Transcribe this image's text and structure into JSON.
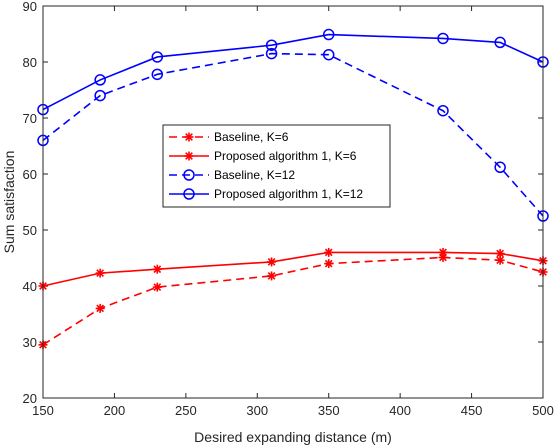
{
  "chart_data": {
    "type": "line",
    "title": "",
    "xlabel": "Desired expanding distance (m)",
    "ylabel": "Sum satisfaction",
    "xlim": [
      150,
      500
    ],
    "ylim": [
      20,
      90
    ],
    "xticks": [
      150,
      200,
      250,
      300,
      350,
      400,
      450,
      500
    ],
    "yticks": [
      20,
      30,
      40,
      50,
      60,
      70,
      80,
      90
    ],
    "x": [
      150,
      190,
      230,
      310,
      350,
      430,
      470,
      500
    ],
    "grid": false,
    "legend_position": "center-left",
    "series": [
      {
        "name": "Baseline, K=6",
        "values": [
          29.5,
          36.0,
          39.8,
          41.8,
          44.0,
          45.1,
          44.6,
          42.5
        ],
        "color": "#ff0000",
        "dash": "dashed",
        "marker": "asterisk"
      },
      {
        "name": "Proposed algorithm 1, K=6",
        "values": [
          40.0,
          42.3,
          43.0,
          44.3,
          46.0,
          46.0,
          45.8,
          44.5
        ],
        "color": "#ff0000",
        "dash": "solid",
        "marker": "asterisk"
      },
      {
        "name": "Baseline, K=12",
        "values": [
          66.0,
          74.0,
          77.8,
          81.5,
          81.3,
          71.3,
          61.2,
          52.5
        ],
        "color": "#0000ff",
        "dash": "dashed",
        "marker": "circle"
      },
      {
        "name": "Proposed algorithm 1, K=12",
        "values": [
          71.5,
          76.8,
          80.9,
          83.0,
          84.9,
          84.2,
          83.5,
          80.0
        ],
        "color": "#0000ff",
        "dash": "solid",
        "marker": "circle"
      }
    ]
  }
}
